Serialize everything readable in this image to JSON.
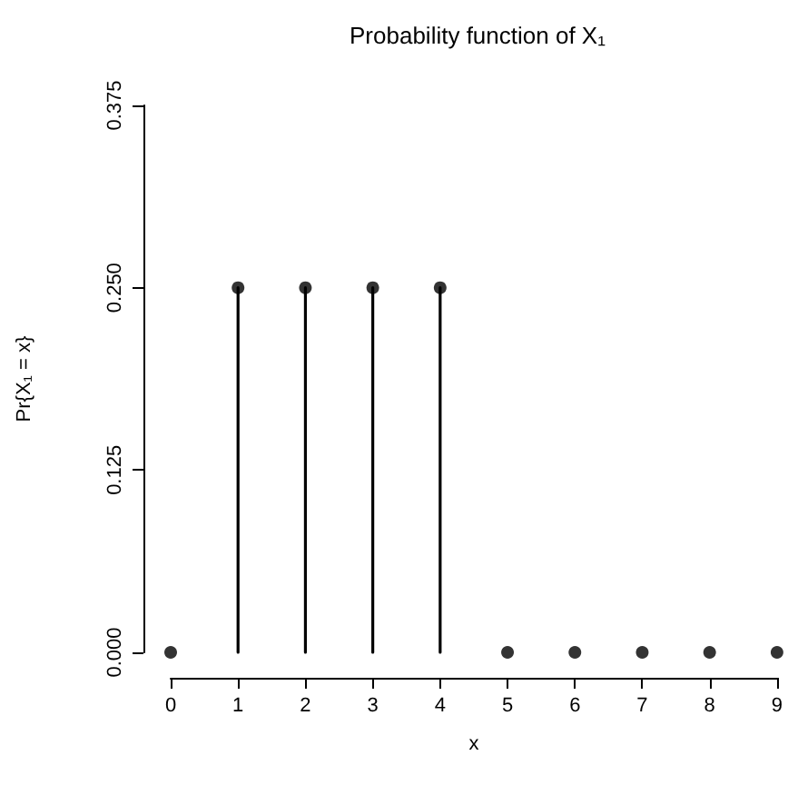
{
  "chart_data": {
    "type": "lollipop",
    "title": "Probability function of X₁",
    "xlabel": "x",
    "ylabel": "Pr{X₁ = x}",
    "x": [
      0,
      1,
      2,
      3,
      4,
      5,
      6,
      7,
      8,
      9
    ],
    "values": [
      0,
      0.25,
      0.25,
      0.25,
      0.25,
      0,
      0,
      0,
      0,
      0
    ],
    "color": "#000000",
    "xlim": [
      0,
      9
    ],
    "xticks": [
      0,
      1,
      2,
      3,
      4,
      5,
      6,
      7,
      8,
      9
    ],
    "ylim": [
      0,
      0.375
    ],
    "yticks": [
      {
        "value": 0,
        "label": "0.000"
      },
      0.125,
      {
        "value": 0.25,
        "label": "0.250"
      },
      0.375
    ],
    "marker": "circle",
    "grid": false
  }
}
